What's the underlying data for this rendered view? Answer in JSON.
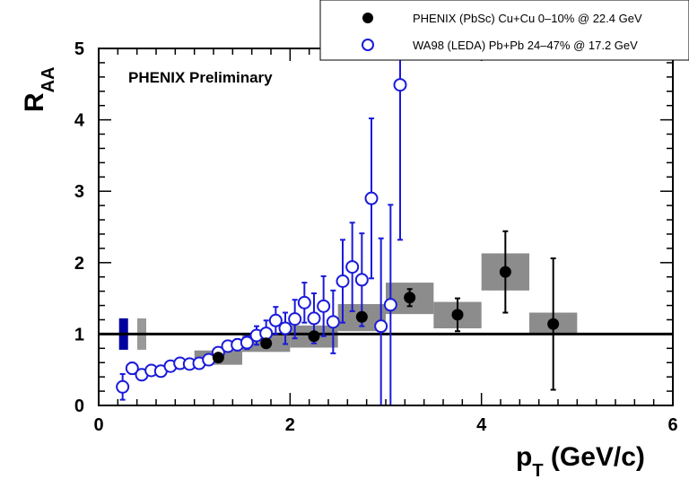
{
  "chart_data": {
    "type": "scatter",
    "annotation": "PHENIX Preliminary",
    "xlabel": {
      "main": "p",
      "sub": "T",
      "rest": " (GeV/c)"
    },
    "ylabel": {
      "main": "R",
      "sub": "AA"
    },
    "xlim": [
      0,
      6
    ],
    "ylim": [
      0,
      5
    ],
    "x_ticks": [
      "0",
      "2",
      "4",
      "6"
    ],
    "y_ticks": [
      "0",
      "1",
      "2",
      "3",
      "4",
      "5"
    ],
    "reference_line": 1,
    "legend_position": "top-right",
    "colors": {
      "phenix": "#000000",
      "wa98": "#1a1adb",
      "syst_box": "#8c8c8c",
      "norm_wa98": "#0000a0",
      "norm_phenix": "#999999"
    },
    "normalization_boxes": [
      {
        "series": "wa98",
        "x": 0.26,
        "low": 0.78,
        "high": 1.22
      },
      {
        "series": "phenix",
        "x": 0.45,
        "low": 0.78,
        "high": 1.22
      }
    ],
    "series": [
      {
        "name": "PHENIX (PbSc) Cu+Cu 0–10% @ 22.4 GeV",
        "marker": "filled-circle",
        "points": [
          {
            "x": 1.25,
            "y": 0.67,
            "err": 0.02,
            "syst_low": 0.57,
            "syst_high": 0.77,
            "x_low": 1.0,
            "x_high": 1.5
          },
          {
            "x": 1.75,
            "y": 0.87,
            "err": 0.03,
            "syst_low": 0.75,
            "syst_high": 0.99,
            "x_low": 1.5,
            "x_high": 2.0
          },
          {
            "x": 2.25,
            "y": 0.97,
            "err": 0.04,
            "syst_low": 0.81,
            "syst_high": 1.12,
            "x_low": 2.0,
            "x_high": 2.5
          },
          {
            "x": 2.75,
            "y": 1.24,
            "err": 0.06,
            "syst_low": 1.04,
            "syst_high": 1.42,
            "x_low": 2.5,
            "x_high": 3.0
          },
          {
            "x": 3.25,
            "y": 1.51,
            "err": 0.12,
            "syst_low": 1.28,
            "syst_high": 1.72,
            "x_low": 3.0,
            "x_high": 3.5
          },
          {
            "x": 3.75,
            "y": 1.27,
            "err": 0.23,
            "syst_low": 1.08,
            "syst_high": 1.45,
            "x_low": 3.5,
            "x_high": 4.0
          },
          {
            "x": 4.25,
            "y": 1.87,
            "err_low": 0.57,
            "err_high": 0.57,
            "syst_low": 1.61,
            "syst_high": 2.13,
            "x_low": 4.0,
            "x_high": 4.5
          },
          {
            "x": 4.75,
            "y": 1.14,
            "err_low": 0.92,
            "err_high": 0.92,
            "syst_low": 1.0,
            "syst_high": 1.3,
            "x_low": 4.5,
            "x_high": 5.0
          }
        ]
      },
      {
        "name": "WA98 (LEDA)  Pb+Pb 24–47% @ 17.2 GeV",
        "marker": "open-circle",
        "points": [
          {
            "x": 0.25,
            "y": 0.26,
            "err": 0.18
          },
          {
            "x": 0.35,
            "y": 0.52,
            "err": 0.08
          },
          {
            "x": 0.45,
            "y": 0.43,
            "err": 0.05
          },
          {
            "x": 0.55,
            "y": 0.49,
            "err": 0.04
          },
          {
            "x": 0.65,
            "y": 0.48,
            "err": 0.04
          },
          {
            "x": 0.75,
            "y": 0.55,
            "err": 0.03
          },
          {
            "x": 0.85,
            "y": 0.59,
            "err": 0.03
          },
          {
            "x": 0.95,
            "y": 0.58,
            "err": 0.04
          },
          {
            "x": 1.05,
            "y": 0.59,
            "err": 0.04
          },
          {
            "x": 1.15,
            "y": 0.64,
            "err": 0.05
          },
          {
            "x": 1.25,
            "y": 0.74,
            "err": 0.06
          },
          {
            "x": 1.35,
            "y": 0.83,
            "err": 0.07
          },
          {
            "x": 1.45,
            "y": 0.85,
            "err": 0.08
          },
          {
            "x": 1.55,
            "y": 0.88,
            "err": 0.09
          },
          {
            "x": 1.65,
            "y": 0.98,
            "err": 0.13
          },
          {
            "x": 1.75,
            "y": 1.01,
            "err": 0.18
          },
          {
            "x": 1.85,
            "y": 1.19,
            "err": 0.19
          },
          {
            "x": 1.95,
            "y": 1.08,
            "err": 0.22
          },
          {
            "x": 2.05,
            "y": 1.21,
            "err": 0.27
          },
          {
            "x": 2.15,
            "y": 1.44,
            "err": 0.28
          },
          {
            "x": 2.25,
            "y": 1.22,
            "err": 0.35
          },
          {
            "x": 2.35,
            "y": 1.39,
            "err": 0.42
          },
          {
            "x": 2.45,
            "y": 1.17,
            "err": 0.44
          },
          {
            "x": 2.55,
            "y": 1.74,
            "err": 0.58
          },
          {
            "x": 2.65,
            "y": 1.94,
            "err": 0.62
          },
          {
            "x": 2.75,
            "y": 1.76,
            "err": 0.65
          },
          {
            "x": 2.85,
            "y": 2.9,
            "err": 1.12
          },
          {
            "x": 2.95,
            "y": 1.11,
            "err_low": 1.11,
            "err_high": 1.23
          },
          {
            "x": 3.05,
            "y": 1.41,
            "err_low": 1.41,
            "err_high": 1.4
          },
          {
            "x": 3.15,
            "y": 4.49,
            "err_low": 2.17,
            "err_high": 0.51
          }
        ]
      }
    ]
  }
}
